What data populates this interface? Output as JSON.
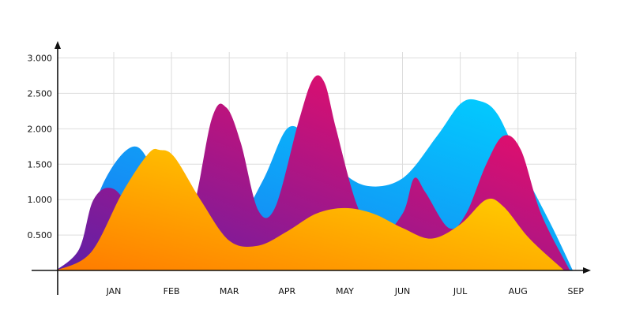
{
  "chart_data": {
    "type": "area",
    "title": "",
    "xlabel": "",
    "ylabel": "",
    "categories": [
      "JAN",
      "FEB",
      "MAR",
      "APR",
      "MAY",
      "JUN",
      "JUL",
      "AUG",
      "SEP"
    ],
    "y_ticks": [
      "0.500",
      "1.000",
      "1.500",
      "2.000",
      "2.500",
      "3.000"
    ],
    "ylim": [
      0,
      3000
    ],
    "grid": true,
    "legend": "none",
    "series": [
      {
        "color": "#1a8ef5",
        "gradient": [
          "#1e6ff0",
          "#00d2ff"
        ],
        "points": [
          [
            -1,
            0
          ],
          [
            -0.6,
            100
          ],
          [
            -0.2,
            1200
          ],
          [
            0.35,
            1750
          ],
          [
            0.8,
            1300
          ],
          [
            1.6,
            550
          ],
          [
            2.15,
            700
          ],
          [
            2.6,
            1300
          ],
          [
            3.0,
            2000
          ],
          [
            3.35,
            1900
          ],
          [
            3.8,
            1500
          ],
          [
            4.35,
            1200
          ],
          [
            5.0,
            1300
          ],
          [
            5.6,
            1900
          ],
          [
            6.0,
            2350
          ],
          [
            6.3,
            2400
          ],
          [
            6.65,
            2200
          ],
          [
            7.1,
            1400
          ],
          [
            7.6,
            600
          ],
          [
            7.95,
            0
          ]
        ]
      },
      {
        "color": "#b0207e",
        "gradient": [
          "#5e20a8",
          "#ff0a5f"
        ],
        "points": [
          [
            -1,
            0
          ],
          [
            -0.6,
            300
          ],
          [
            -0.35,
            1000
          ],
          [
            0,
            1150
          ],
          [
            0.5,
            700
          ],
          [
            1.25,
            600
          ],
          [
            1.7,
            2150
          ],
          [
            1.95,
            2300
          ],
          [
            2.2,
            1800
          ],
          [
            2.5,
            850
          ],
          [
            2.8,
            900
          ],
          [
            3.2,
            2100
          ],
          [
            3.45,
            2700
          ],
          [
            3.65,
            2650
          ],
          [
            3.85,
            2000
          ],
          [
            4.2,
            950
          ],
          [
            4.55,
            450
          ],
          [
            5.0,
            800
          ],
          [
            5.2,
            1300
          ],
          [
            5.4,
            1100
          ],
          [
            5.8,
            600
          ],
          [
            6.1,
            800
          ],
          [
            6.45,
            1500
          ],
          [
            6.75,
            1900
          ],
          [
            7.05,
            1700
          ],
          [
            7.4,
            800
          ],
          [
            7.9,
            0
          ]
        ]
      },
      {
        "color": "#ffb000",
        "gradient": [
          "#ff7a00",
          "#ffe600"
        ],
        "points": [
          [
            -1,
            0
          ],
          [
            -0.4,
            250
          ],
          [
            0.15,
            1100
          ],
          [
            0.6,
            1650
          ],
          [
            0.8,
            1700
          ],
          [
            1.05,
            1600
          ],
          [
            1.5,
            1000
          ],
          [
            2.0,
            420
          ],
          [
            2.5,
            350
          ],
          [
            3.0,
            550
          ],
          [
            3.5,
            800
          ],
          [
            4.0,
            880
          ],
          [
            4.5,
            800
          ],
          [
            5.0,
            600
          ],
          [
            5.5,
            450
          ],
          [
            6.0,
            650
          ],
          [
            6.45,
            1000
          ],
          [
            6.75,
            900
          ],
          [
            7.2,
            450
          ],
          [
            7.8,
            0
          ]
        ]
      }
    ]
  }
}
